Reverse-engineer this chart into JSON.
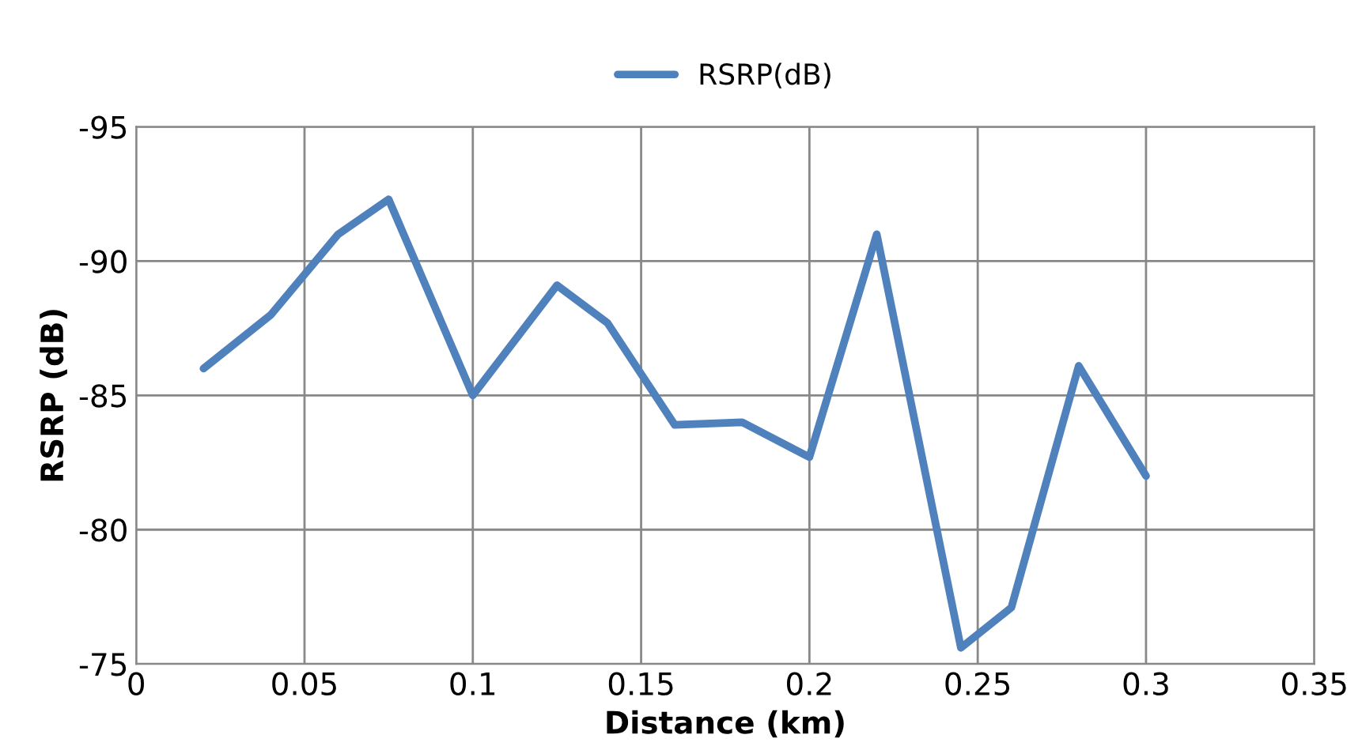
{
  "chart_data": {
    "type": "line",
    "xlabel": "Distance (km)",
    "ylabel": "RSRP (dB)",
    "x": [
      0.02,
      0.04,
      0.06,
      0.075,
      0.1,
      0.125,
      0.14,
      0.16,
      0.18,
      0.2,
      0.22,
      0.245,
      0.26,
      0.28,
      0.3
    ],
    "series": [
      {
        "name": "RSRP(dB)",
        "color": "#4f81bd",
        "values": [
          -86,
          -88,
          -91,
          -92.3,
          -85,
          -89.1,
          -87.7,
          -83.9,
          -84,
          -82.7,
          -91,
          -75.6,
          -77.1,
          -86.1,
          -82
        ]
      }
    ],
    "xlim": [
      0,
      0.35
    ],
    "xticks": [
      0,
      0.05,
      0.1,
      0.15,
      0.2,
      0.25,
      0.3,
      0.35
    ],
    "ylim": [
      -75,
      -95
    ],
    "yticks": [
      -95,
      -90,
      -85,
      -80,
      -75
    ],
    "grid": true,
    "legend": "top",
    "marker": "none",
    "line_style": "solid"
  }
}
